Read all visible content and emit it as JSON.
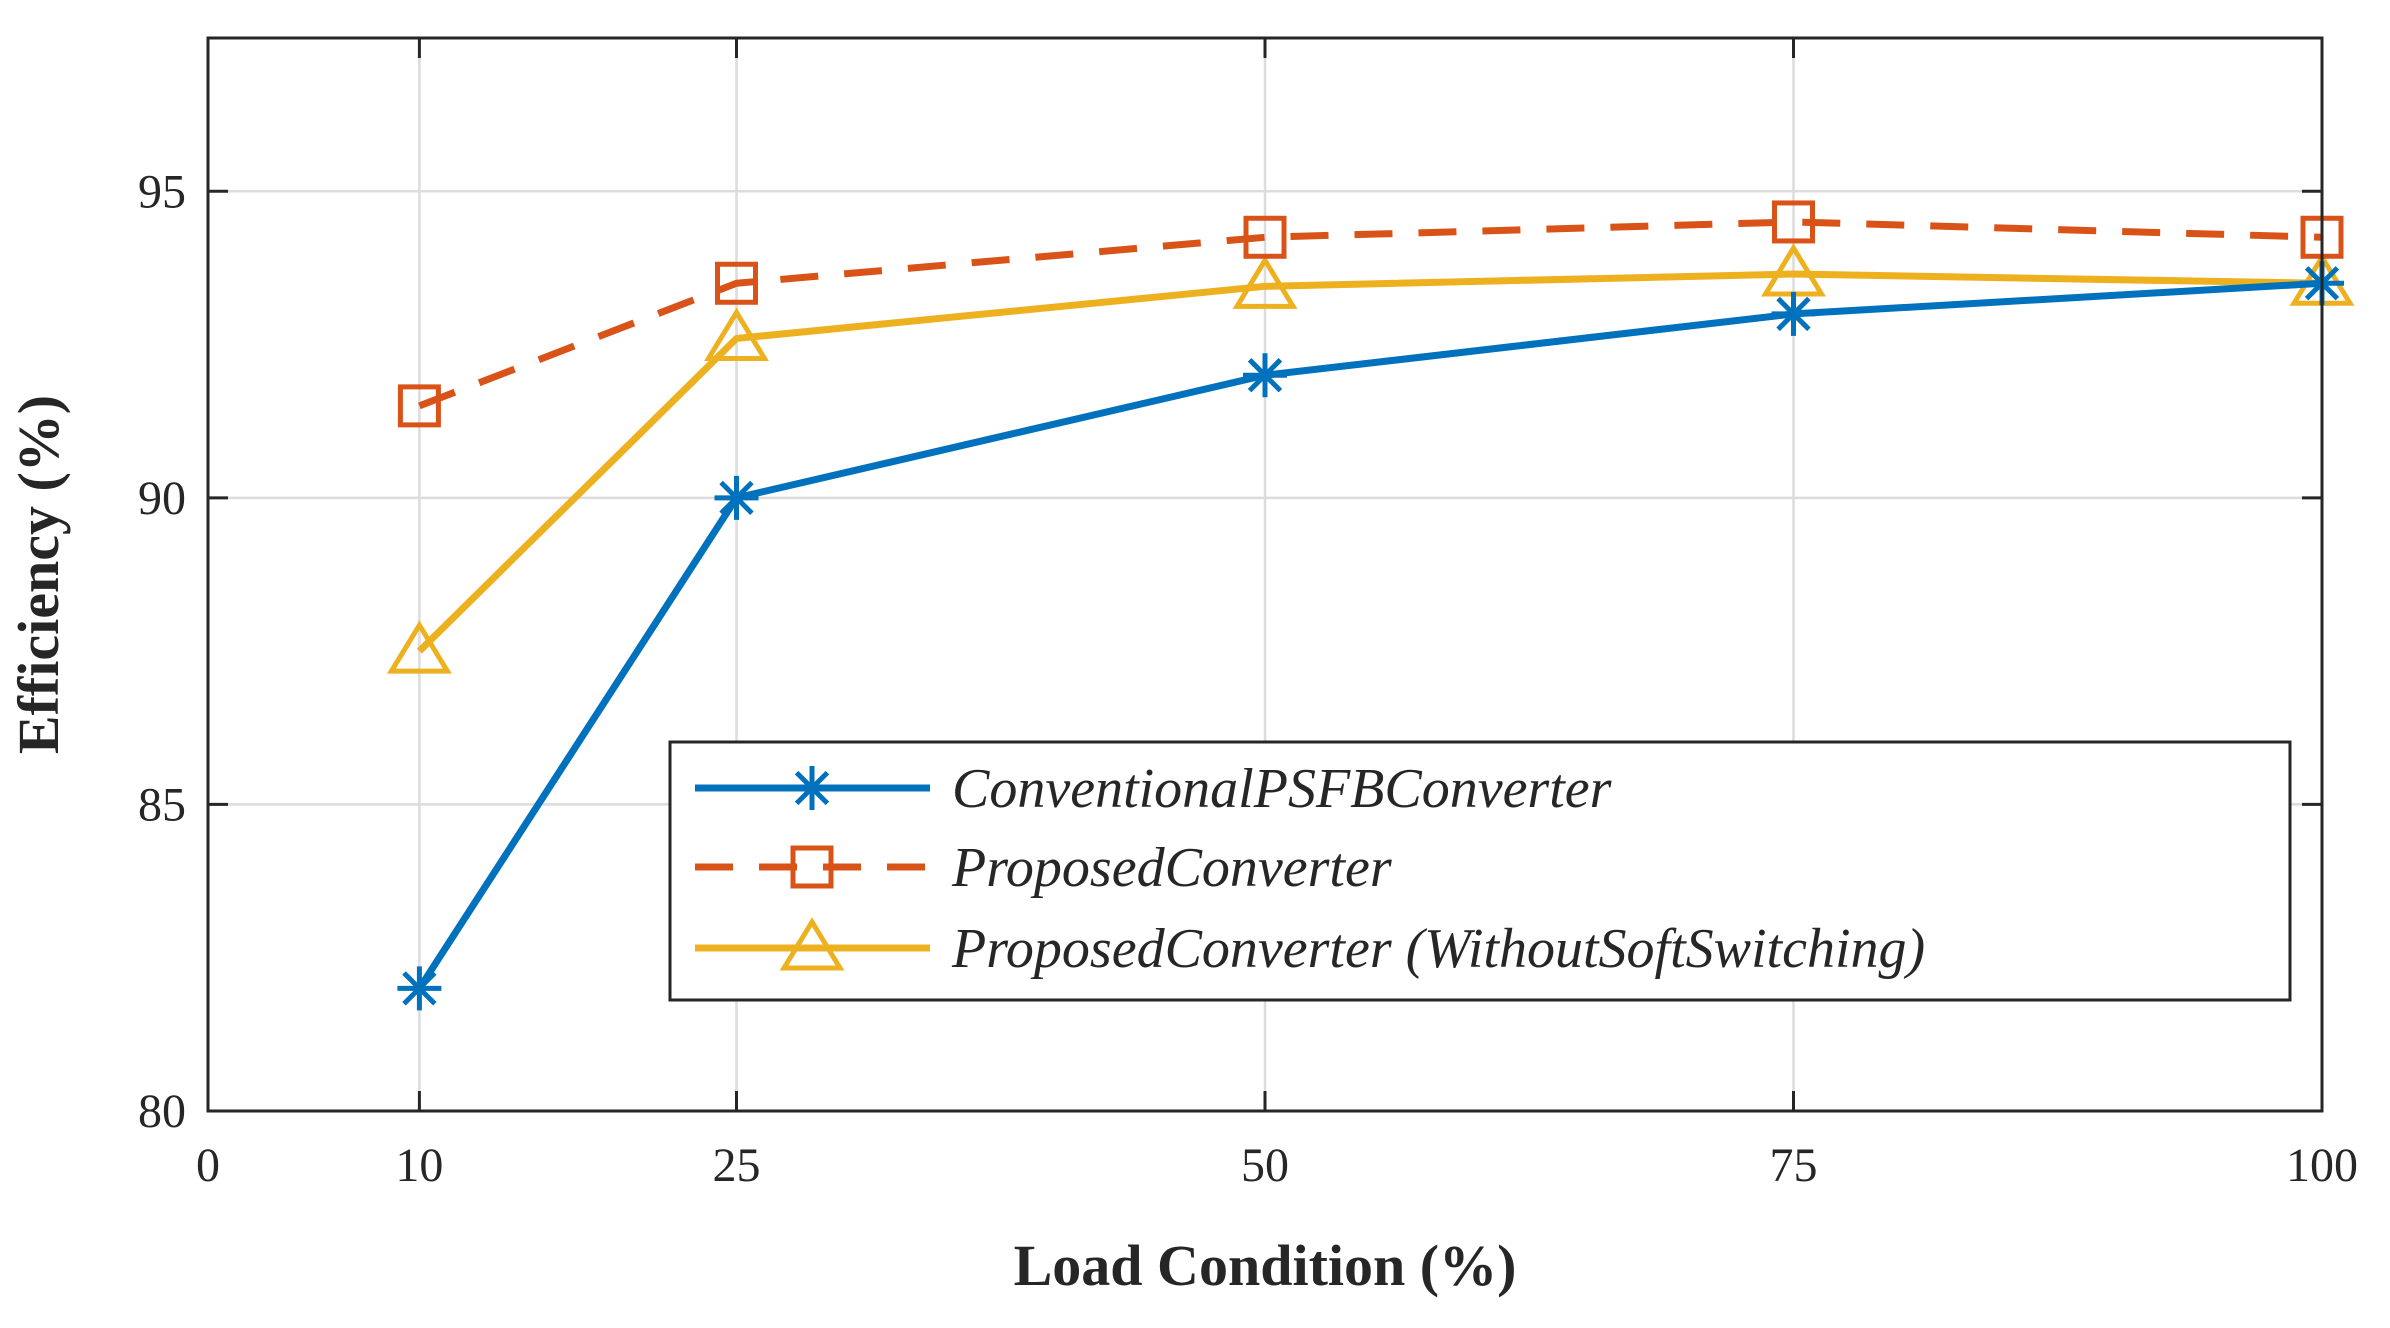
{
  "chart_data": {
    "type": "line",
    "title": "",
    "xlabel": "Load Condition (%)",
    "ylabel": "Efficiency (%)",
    "xlim": [
      0,
      100
    ],
    "ylim": [
      80,
      97.5
    ],
    "xticks": [
      0,
      10,
      25,
      50,
      75,
      100
    ],
    "yticks": [
      80,
      85,
      90,
      95
    ],
    "grid": true,
    "legend_position": "lower-right",
    "x": [
      10,
      25,
      50,
      75,
      100
    ],
    "series": [
      {
        "name": "ConventionalPSFBConverter",
        "values": [
          82,
          90,
          92,
          93,
          93.5
        ],
        "color": "#0072BD",
        "marker": "asterisk",
        "line": "solid"
      },
      {
        "name": "ProposedConverter",
        "values": [
          91.5,
          93.5,
          94.25,
          94.5,
          94.25
        ],
        "color": "#D95319",
        "marker": "square",
        "line": "dashed"
      },
      {
        "name": "ProposedConverter (WithoutSoftSwitching)",
        "values": [
          87.5,
          92.6,
          93.45,
          93.65,
          93.5
        ],
        "color": "#EDB120",
        "marker": "triangle",
        "line": "solid"
      }
    ]
  }
}
